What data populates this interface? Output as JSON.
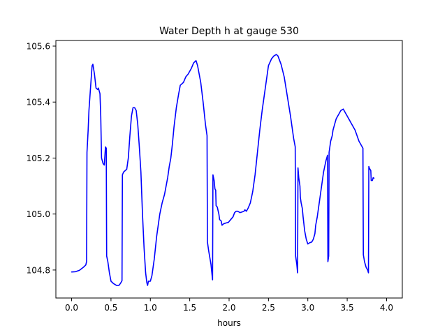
{
  "chart_data": {
    "type": "line",
    "title": "Water Depth h at gauge 530",
    "xlabel": "hours",
    "ylabel": "",
    "xlim": [
      -0.2,
      4.2
    ],
    "ylim": [
      104.7,
      105.62
    ],
    "xticks": [
      0.0,
      0.5,
      1.0,
      1.5,
      2.0,
      2.5,
      3.0,
      3.5,
      4.0
    ],
    "xtick_labels": [
      "0.0",
      "0.5",
      "1.0",
      "1.5",
      "2.0",
      "2.5",
      "3.0",
      "3.5",
      "4.0"
    ],
    "yticks": [
      104.8,
      105.0,
      105.2,
      105.4,
      105.6
    ],
    "ytick_labels": [
      "104.8",
      "105.0",
      "105.2",
      "105.4",
      "105.6"
    ],
    "grid": false,
    "series": [
      {
        "color": "#0000ff",
        "points": [
          [
            0.0,
            104.793
          ],
          [
            0.05,
            104.794
          ],
          [
            0.1,
            104.799
          ],
          [
            0.15,
            104.81
          ],
          [
            0.18,
            104.818
          ],
          [
            0.19,
            104.83
          ],
          [
            0.195,
            105.22
          ],
          [
            0.21,
            105.3
          ],
          [
            0.22,
            105.37
          ],
          [
            0.24,
            105.45
          ],
          [
            0.26,
            105.53
          ],
          [
            0.27,
            105.535
          ],
          [
            0.29,
            105.5
          ],
          [
            0.31,
            105.45
          ],
          [
            0.33,
            105.445
          ],
          [
            0.34,
            105.45
          ],
          [
            0.36,
            105.43
          ],
          [
            0.37,
            105.35
          ],
          [
            0.38,
            105.2
          ],
          [
            0.4,
            105.18
          ],
          [
            0.415,
            105.175
          ],
          [
            0.43,
            105.24
          ],
          [
            0.44,
            105.235
          ],
          [
            0.445,
            104.85
          ],
          [
            0.46,
            104.83
          ],
          [
            0.48,
            104.79
          ],
          [
            0.5,
            104.76
          ],
          [
            0.53,
            104.752
          ],
          [
            0.57,
            104.745
          ],
          [
            0.6,
            104.745
          ],
          [
            0.62,
            104.752
          ],
          [
            0.64,
            104.762
          ],
          [
            0.645,
            105.14
          ],
          [
            0.66,
            105.15
          ],
          [
            0.68,
            105.155
          ],
          [
            0.7,
            105.16
          ],
          [
            0.72,
            105.2
          ],
          [
            0.74,
            105.28
          ],
          [
            0.76,
            105.35
          ],
          [
            0.78,
            105.38
          ],
          [
            0.8,
            105.38
          ],
          [
            0.82,
            105.37
          ],
          [
            0.84,
            105.32
          ],
          [
            0.86,
            105.24
          ],
          [
            0.88,
            105.15
          ],
          [
            0.9,
            105.0
          ],
          [
            0.92,
            104.88
          ],
          [
            0.94,
            104.79
          ],
          [
            0.955,
            104.755
          ],
          [
            0.965,
            104.745
          ],
          [
            0.975,
            104.76
          ],
          [
            1.0,
            104.76
          ],
          [
            1.02,
            104.78
          ],
          [
            1.05,
            104.84
          ],
          [
            1.08,
            104.92
          ],
          [
            1.12,
            105.0
          ],
          [
            1.15,
            105.04
          ],
          [
            1.18,
            105.07
          ],
          [
            1.2,
            105.1
          ],
          [
            1.22,
            105.13
          ],
          [
            1.24,
            105.17
          ],
          [
            1.26,
            105.2
          ],
          [
            1.28,
            105.25
          ],
          [
            1.3,
            105.31
          ],
          [
            1.33,
            105.38
          ],
          [
            1.36,
            105.43
          ],
          [
            1.38,
            105.46
          ],
          [
            1.42,
            105.47
          ],
          [
            1.45,
            105.49
          ],
          [
            1.48,
            105.5
          ],
          [
            1.52,
            105.52
          ],
          [
            1.55,
            105.54
          ],
          [
            1.58,
            105.548
          ],
          [
            1.6,
            105.53
          ],
          [
            1.62,
            105.5
          ],
          [
            1.64,
            105.47
          ],
          [
            1.67,
            105.4
          ],
          [
            1.7,
            105.32
          ],
          [
            1.72,
            105.28
          ],
          [
            1.725,
            104.9
          ],
          [
            1.74,
            104.87
          ],
          [
            1.77,
            104.82
          ],
          [
            1.79,
            104.765
          ],
          [
            1.795,
            105.14
          ],
          [
            1.81,
            105.12
          ],
          [
            1.82,
            105.09
          ],
          [
            1.83,
            105.085
          ],
          [
            1.835,
            105.03
          ],
          [
            1.85,
            105.025
          ],
          [
            1.87,
            105.0
          ],
          [
            1.88,
            104.98
          ],
          [
            1.9,
            104.975
          ],
          [
            1.91,
            104.96
          ],
          [
            1.93,
            104.965
          ],
          [
            1.96,
            104.968
          ],
          [
            1.99,
            104.97
          ],
          [
            2.02,
            104.98
          ],
          [
            2.05,
            104.99
          ],
          [
            2.07,
            105.005
          ],
          [
            2.09,
            105.01
          ],
          [
            2.11,
            105.01
          ],
          [
            2.14,
            105.005
          ],
          [
            2.17,
            105.008
          ],
          [
            2.19,
            105.01
          ],
          [
            2.2,
            105.015
          ],
          [
            2.22,
            105.01
          ],
          [
            2.24,
            105.02
          ],
          [
            2.27,
            105.04
          ],
          [
            2.3,
            105.08
          ],
          [
            2.33,
            105.14
          ],
          [
            2.36,
            105.22
          ],
          [
            2.39,
            105.3
          ],
          [
            2.42,
            105.37
          ],
          [
            2.46,
            105.45
          ],
          [
            2.5,
            105.53
          ],
          [
            2.54,
            105.555
          ],
          [
            2.57,
            105.565
          ],
          [
            2.6,
            105.57
          ],
          [
            2.62,
            105.565
          ],
          [
            2.66,
            105.535
          ],
          [
            2.7,
            105.49
          ],
          [
            2.74,
            105.42
          ],
          [
            2.78,
            105.35
          ],
          [
            2.82,
            105.27
          ],
          [
            2.84,
            105.24
          ],
          [
            2.845,
            104.85
          ],
          [
            2.86,
            104.82
          ],
          [
            2.87,
            104.79
          ],
          [
            2.875,
            105.165
          ],
          [
            2.885,
            105.13
          ],
          [
            2.9,
            105.1
          ],
          [
            2.905,
            105.06
          ],
          [
            2.915,
            105.04
          ],
          [
            2.93,
            105.02
          ],
          [
            2.94,
            104.99
          ],
          [
            2.96,
            104.94
          ],
          [
            2.98,
            104.91
          ],
          [
            3.0,
            104.893
          ],
          [
            3.02,
            104.897
          ],
          [
            3.05,
            104.9
          ],
          [
            3.07,
            104.91
          ],
          [
            3.09,
            104.93
          ],
          [
            3.1,
            104.96
          ],
          [
            3.12,
            104.99
          ],
          [
            3.15,
            105.05
          ],
          [
            3.18,
            105.11
          ],
          [
            3.2,
            105.15
          ],
          [
            3.23,
            105.19
          ],
          [
            3.25,
            105.21
          ],
          [
            3.255,
            104.83
          ],
          [
            3.265,
            104.85
          ],
          [
            3.27,
            105.22
          ],
          [
            3.29,
            105.26
          ],
          [
            3.31,
            105.28
          ],
          [
            3.32,
            105.3
          ],
          [
            3.34,
            105.32
          ],
          [
            3.36,
            105.34
          ],
          [
            3.38,
            105.35
          ],
          [
            3.4,
            105.36
          ],
          [
            3.42,
            105.37
          ],
          [
            3.45,
            105.375
          ],
          [
            3.48,
            105.36
          ],
          [
            3.5,
            105.35
          ],
          [
            3.53,
            105.335
          ],
          [
            3.56,
            105.32
          ],
          [
            3.6,
            105.3
          ],
          [
            3.65,
            105.26
          ],
          [
            3.7,
            105.235
          ],
          [
            3.705,
            104.855
          ],
          [
            3.72,
            104.83
          ],
          [
            3.74,
            104.81
          ],
          [
            3.76,
            104.8
          ],
          [
            3.77,
            104.79
          ],
          [
            3.775,
            105.17
          ],
          [
            3.78,
            105.165
          ],
          [
            3.8,
            105.155
          ],
          [
            3.805,
            105.12
          ],
          [
            3.82,
            105.12
          ],
          [
            3.83,
            105.13
          ],
          [
            3.84,
            105.128
          ]
        ]
      }
    ]
  }
}
